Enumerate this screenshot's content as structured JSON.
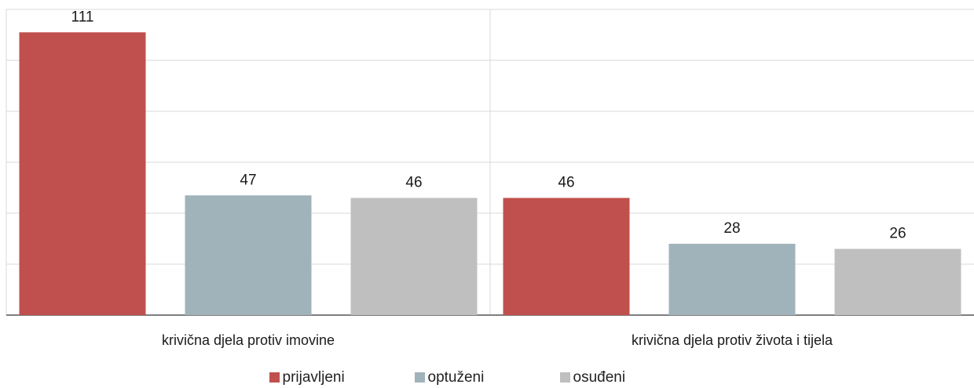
{
  "chart_data": {
    "type": "bar",
    "categories": [
      "krivična djela protiv imovine",
      "krivična djela protiv života i tijela"
    ],
    "series": [
      {
        "name": "prijavljeni",
        "values": [
          111,
          46
        ],
        "color": "#c0504d"
      },
      {
        "name": "optuženi",
        "values": [
          47,
          28
        ],
        "color": "#a0b3bb"
      },
      {
        "name": "osuđeni",
        "values": [
          46,
          26
        ],
        "color": "#bfbfbf"
      }
    ],
    "ylim": [
      0,
      120
    ],
    "grid": true,
    "legend_position": "bottom"
  }
}
